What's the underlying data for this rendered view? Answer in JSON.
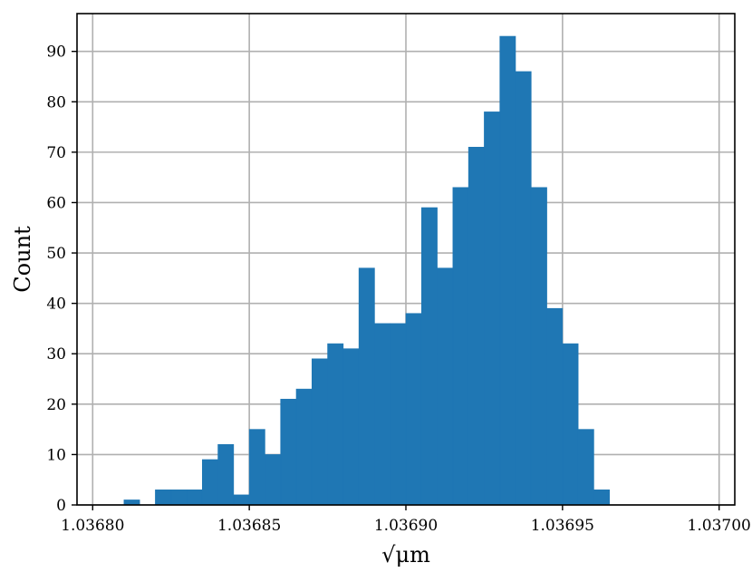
{
  "chart_data": {
    "type": "bar",
    "title": "",
    "xlabel": "√μm",
    "ylabel": "Count",
    "x_ticks": [
      1.0368,
      1.03685,
      1.0369,
      1.03695,
      1.037
    ],
    "x_tick_labels": [
      "1.03680",
      "1.03685",
      "1.03690",
      "1.03695",
      "1.03700"
    ],
    "y_ticks": [
      0,
      10,
      20,
      30,
      40,
      50,
      60,
      70,
      80,
      90
    ],
    "y_tick_labels": [
      "0",
      "10",
      "20",
      "30",
      "40",
      "50",
      "60",
      "70",
      "80",
      "90"
    ],
    "xlim": [
      1.036795,
      1.037005
    ],
    "ylim": [
      0,
      97.5
    ],
    "grid": true,
    "bin_width": 5e-06,
    "bins": [
      {
        "x0": 1.03681,
        "x1": 1.036815,
        "count": 1
      },
      {
        "x0": 1.036815,
        "x1": 1.03682,
        "count": 0
      },
      {
        "x0": 1.03682,
        "x1": 1.036825,
        "count": 3
      },
      {
        "x0": 1.036825,
        "x1": 1.03683,
        "count": 3
      },
      {
        "x0": 1.03683,
        "x1": 1.036835,
        "count": 3
      },
      {
        "x0": 1.036835,
        "x1": 1.03684,
        "count": 9
      },
      {
        "x0": 1.03684,
        "x1": 1.036845,
        "count": 12
      },
      {
        "x0": 1.036845,
        "x1": 1.03685,
        "count": 2
      },
      {
        "x0": 1.03685,
        "x1": 1.036855,
        "count": 15
      },
      {
        "x0": 1.036855,
        "x1": 1.03686,
        "count": 10
      },
      {
        "x0": 1.03686,
        "x1": 1.036865,
        "count": 21
      },
      {
        "x0": 1.036865,
        "x1": 1.03687,
        "count": 23
      },
      {
        "x0": 1.03687,
        "x1": 1.036875,
        "count": 29
      },
      {
        "x0": 1.036875,
        "x1": 1.03688,
        "count": 32
      },
      {
        "x0": 1.03688,
        "x1": 1.036885,
        "count": 31
      },
      {
        "x0": 1.036885,
        "x1": 1.03689,
        "count": 47
      },
      {
        "x0": 1.03689,
        "x1": 1.036895,
        "count": 36
      },
      {
        "x0": 1.036895,
        "x1": 1.0369,
        "count": 36
      },
      {
        "x0": 1.0369,
        "x1": 1.036905,
        "count": 38
      },
      {
        "x0": 1.036905,
        "x1": 1.03691,
        "count": 59
      },
      {
        "x0": 1.03691,
        "x1": 1.036915,
        "count": 47
      },
      {
        "x0": 1.036915,
        "x1": 1.03692,
        "count": 63
      },
      {
        "x0": 1.03692,
        "x1": 1.036925,
        "count": 71
      },
      {
        "x0": 1.036925,
        "x1": 1.03693,
        "count": 78
      },
      {
        "x0": 1.03693,
        "x1": 1.036935,
        "count": 93
      },
      {
        "x0": 1.036935,
        "x1": 1.03694,
        "count": 86
      },
      {
        "x0": 1.03694,
        "x1": 1.036945,
        "count": 63
      },
      {
        "x0": 1.036945,
        "x1": 1.03695,
        "count": 39
      },
      {
        "x0": 1.03695,
        "x1": 1.036955,
        "count": 32
      },
      {
        "x0": 1.036955,
        "x1": 1.03696,
        "count": 15
      },
      {
        "x0": 1.03696,
        "x1": 1.036965,
        "count": 3
      }
    ],
    "colors": {
      "bar": "#1f77b4",
      "grid": "#b0b0b0"
    }
  }
}
